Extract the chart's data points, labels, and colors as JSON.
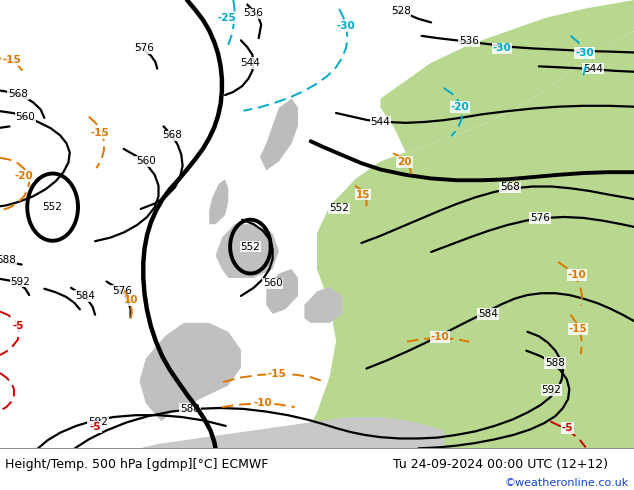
{
  "title_left": "Height/Temp. 500 hPa [gdmp][°C] ECMWF",
  "title_right": "Tu 24-09-2024 00:00 UTC (12+12)",
  "credit": "©weatheronline.co.uk",
  "text_color": "#000000",
  "credit_color": "#1144cc",
  "bottom_bar_color": "#ffffff",
  "title_fontsize": 9.0,
  "credit_fontsize": 8.0,
  "ocean_color": "#d0d0d0",
  "land_green": "#b8d890",
  "land_gray": "#b8b8b8",
  "contour_lw": 1.6,
  "temp_lw": 1.4
}
